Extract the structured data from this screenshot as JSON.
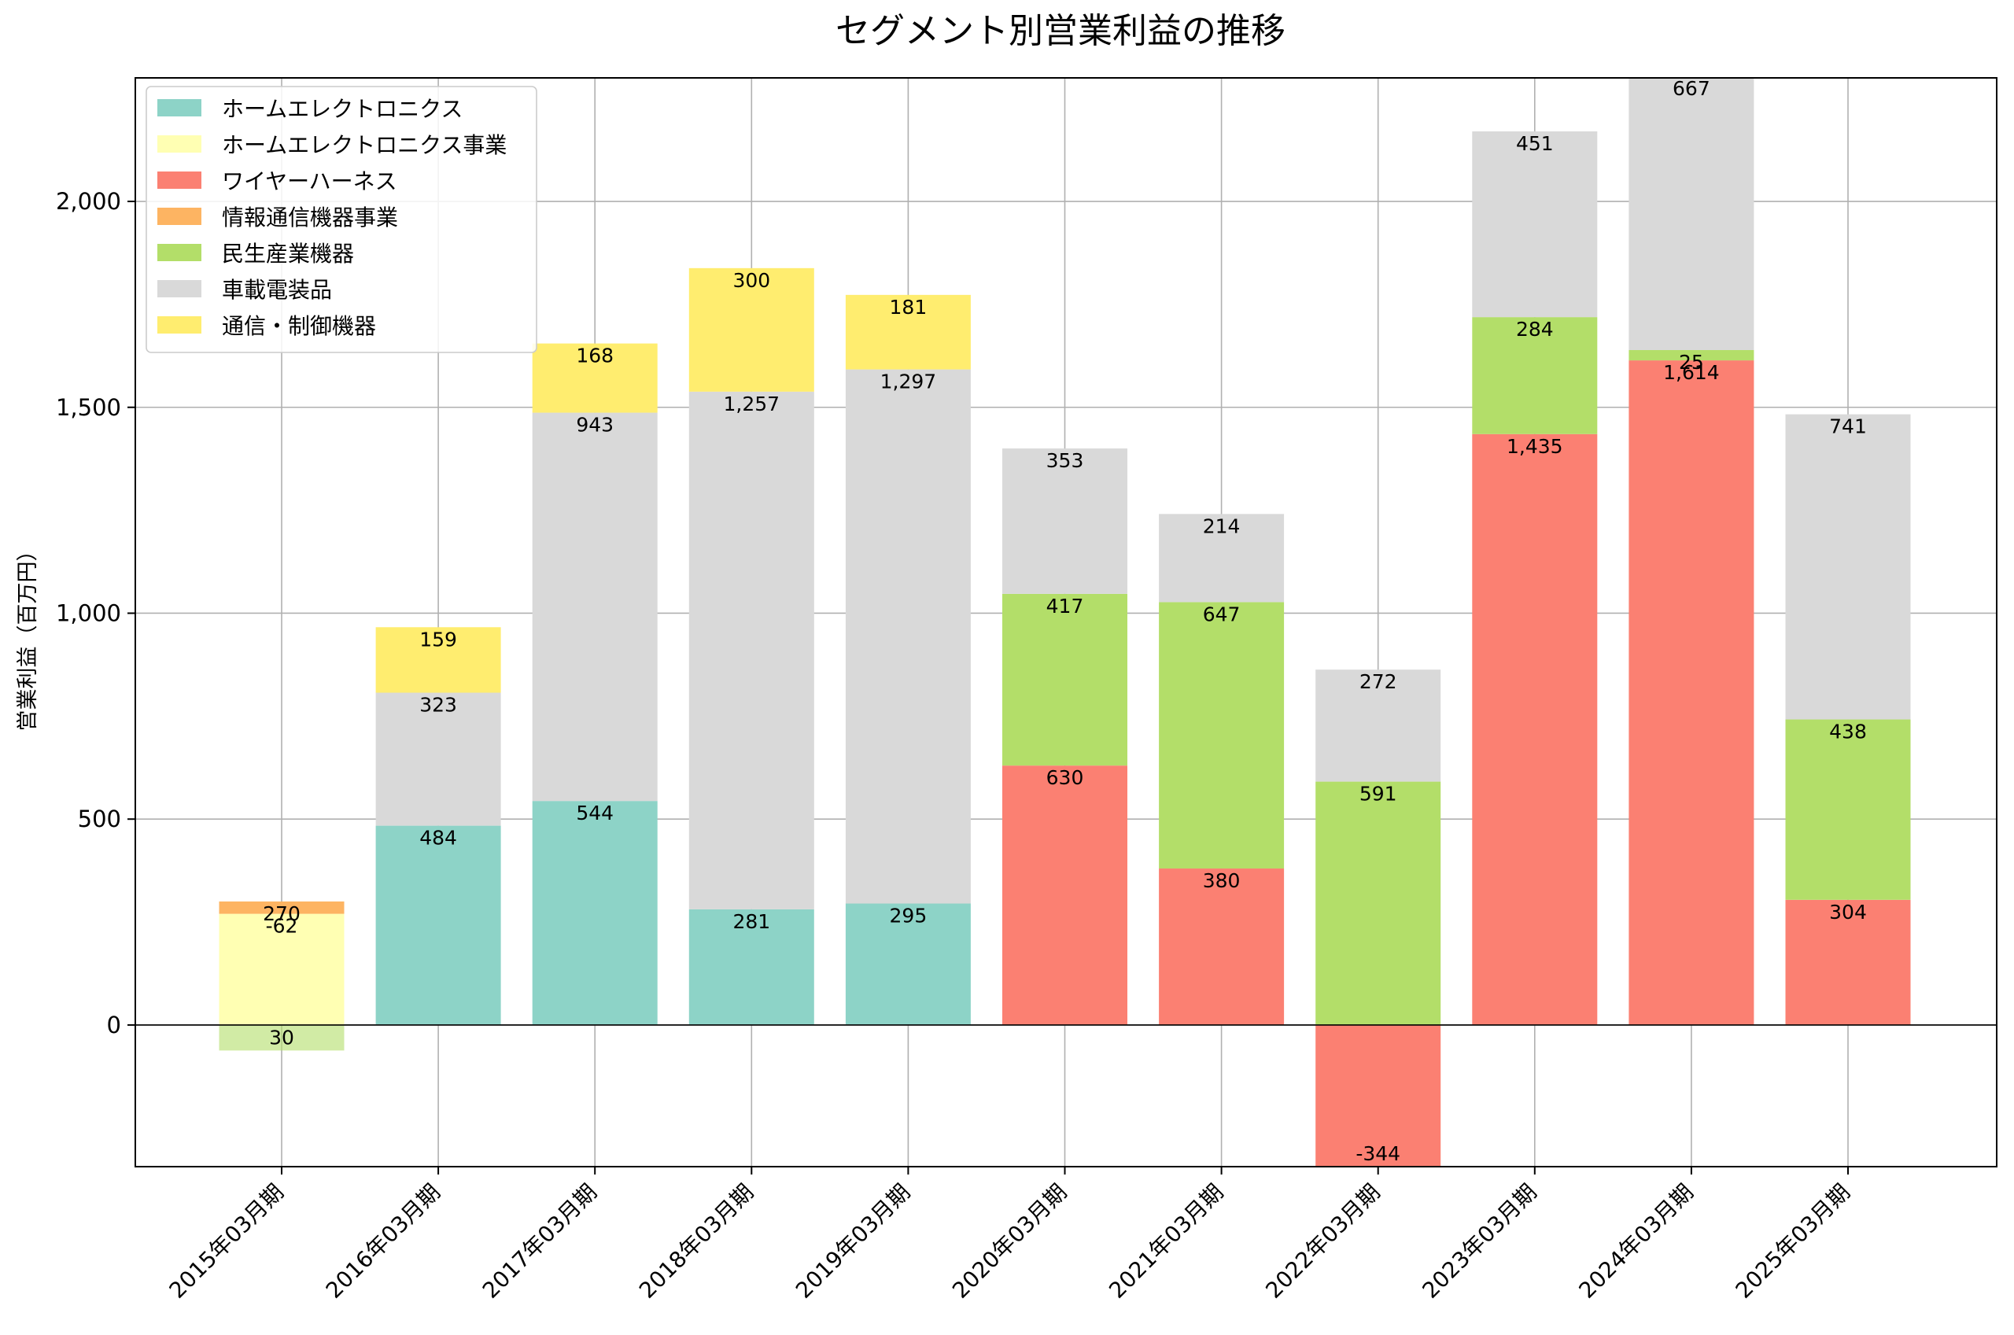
{
  "chart_data": {
    "type": "bar",
    "stacked": true,
    "title": "セグメント別営業利益の推移",
    "xlabel": "",
    "ylabel": "営業利益（百万円）",
    "ylim": [
      -344,
      2300
    ],
    "yticks": [
      0,
      500,
      1000,
      1500,
      2000
    ],
    "ytick_labels": [
      "0",
      "500",
      "1,000",
      "1,500",
      "2,000"
    ],
    "grid": true,
    "legend_position": "top-left",
    "categories": [
      "2015年03月期",
      "2016年03月期",
      "2017年03月期",
      "2018年03月期",
      "2019年03月期",
      "2020年03月期",
      "2021年03月期",
      "2022年03月期",
      "2023年03月期",
      "2024年03月期",
      "2025年03月期"
    ],
    "series": [
      {
        "name": "ホームエレクトロニクス",
        "color": "#8dd3c7",
        "values": [
          null,
          484,
          544,
          281,
          295,
          null,
          null,
          null,
          null,
          null,
          null
        ]
      },
      {
        "name": "ホームエレクトロニクス事業",
        "color": "#ffffb3",
        "values": [
          270,
          null,
          null,
          null,
          null,
          null,
          null,
          null,
          null,
          null,
          null
        ]
      },
      {
        "name": "ワイヤーハーネス",
        "color": "#fb8072",
        "values": [
          null,
          null,
          null,
          null,
          null,
          630,
          380,
          -344,
          1435,
          1614,
          304
        ]
      },
      {
        "name": "情報通信機器事業",
        "color": "#fdb462",
        "values": [
          30,
          null,
          null,
          null,
          null,
          null,
          null,
          null,
          null,
          null,
          null
        ]
      },
      {
        "name": "民生産業機器",
        "color": "#b3de69",
        "values": [
          -62,
          null,
          null,
          null,
          null,
          417,
          647,
          591,
          284,
          25,
          438
        ]
      },
      {
        "name": "車載電装品",
        "color": "#d9d9d9",
        "values": [
          null,
          323,
          943,
          1257,
          1297,
          353,
          214,
          272,
          451,
          667,
          741
        ]
      },
      {
        "name": "通信・制御機器",
        "color": "#ffed6f",
        "values": [
          null,
          159,
          168,
          300,
          181,
          null,
          null,
          null,
          null,
          null,
          null
        ]
      }
    ],
    "value_labels": [
      [
        "-62",
        "270",
        "30"
      ],
      [
        "484",
        "323",
        "159"
      ],
      [
        "544",
        "943",
        "168"
      ],
      [
        "281",
        "1,257",
        "300"
      ],
      [
        "295",
        "1,297",
        "181"
      ],
      [
        "630",
        "417",
        "353"
      ],
      [
        "380",
        "647",
        "214"
      ],
      [
        "-344",
        "591",
        "272"
      ],
      [
        "1,435",
        "284",
        "451"
      ],
      [
        "1,614",
        "25",
        "667"
      ],
      [
        "304",
        "438",
        "741"
      ]
    ]
  }
}
